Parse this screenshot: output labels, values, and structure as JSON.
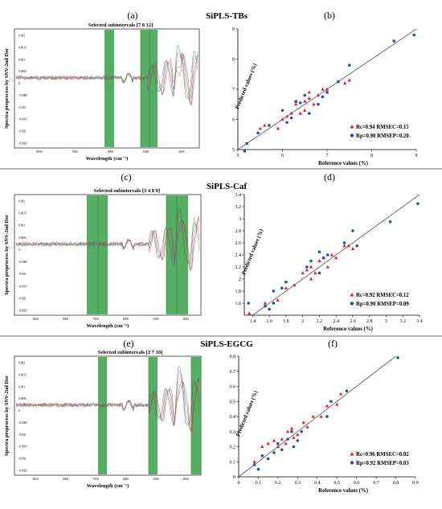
{
  "colors": {
    "band": "#43a552",
    "red": "#e8202a",
    "blue": "#1f4fb0",
    "orange": "#e89a2a",
    "purple": "#7a3aa0",
    "divider": "#8a8a8a",
    "line": "#555555"
  },
  "chart_data": [
    {
      "type": "line",
      "panel_label": "(a)",
      "title": "Selected subintervals [7 8 12]",
      "xlabel": "Wavelength (cm⁻¹)",
      "ylabel": "Spectra preprocess by SNV-2nd Der",
      "selected_intervals": [
        7,
        8,
        12
      ],
      "x_tick_labels": [
        "8000",
        "7000",
        "6000",
        "5000",
        "4000"
      ],
      "y_tick_labels": [
        "0.002",
        "0.0015",
        "0.001",
        "0.0005",
        "0",
        "-0.0005",
        "-0.001",
        "-0.0015",
        "-0.002",
        "-0.0025"
      ]
    },
    {
      "type": "scatter",
      "panel_label": "(b)",
      "group_title": "SiPLS-TBs",
      "xlabel": "Reference values (%)",
      "ylabel": "Predicted values (%)",
      "xlim": [
        5,
        9
      ],
      "ylim": [
        5,
        9
      ],
      "x_ticks": [
        5,
        6,
        7,
        8,
        9
      ],
      "y_ticks": [
        5,
        6,
        7,
        8,
        9
      ],
      "legend": [
        "Rc=0.94  RMSEC=0.15",
        "Rp=0.90  RMSEP=0.20"
      ],
      "series": [
        {
          "name": "Rc=0.94  RMSEC=0.15",
          "marker": "triangle",
          "color": "#e8202a",
          "points": [
            [
              5.5,
              5.7
            ],
            [
              5.6,
              5.8
            ],
            [
              5.9,
              5.7
            ],
            [
              6.0,
              6.0
            ],
            [
              6.1,
              6.1
            ],
            [
              6.2,
              6.2
            ],
            [
              6.3,
              6.5
            ],
            [
              6.4,
              6.2
            ],
            [
              6.5,
              6.3
            ],
            [
              6.5,
              6.6
            ],
            [
              6.6,
              6.7
            ],
            [
              6.7,
              6.5
            ],
            [
              6.8,
              6.8
            ],
            [
              6.9,
              7.0
            ],
            [
              7.0,
              7.0
            ],
            [
              7.4,
              7.2
            ],
            [
              7.5,
              7.3
            ],
            [
              6.3,
              6.6
            ],
            [
              6.6,
              6.9
            ],
            [
              7.0,
              6.9
            ]
          ]
        },
        {
          "name": "Rp=0.90  RMSEP=0.20",
          "marker": "circle",
          "color": "#1f4fb0",
          "points": [
            [
              5.15,
              4.95
            ],
            [
              5.2,
              5.2
            ],
            [
              5.45,
              5.55
            ],
            [
              5.7,
              5.8
            ],
            [
              6.0,
              6.3
            ],
            [
              6.1,
              5.9
            ],
            [
              6.2,
              6.05
            ],
            [
              6.3,
              6.6
            ],
            [
              6.5,
              6.8
            ],
            [
              6.6,
              6.2
            ],
            [
              6.8,
              6.5
            ],
            [
              7.0,
              6.9
            ],
            [
              7.25,
              7.25
            ],
            [
              7.5,
              7.8
            ],
            [
              8.5,
              8.6
            ],
            [
              8.95,
              8.8
            ],
            [
              6.4,
              6.55
            ],
            [
              6.9,
              6.75
            ]
          ]
        }
      ]
    },
    {
      "type": "line",
      "panel_label": "(c)",
      "title": "Selected subintervals [3 4 8 9]",
      "xlabel": "Wavelength (cm⁻¹)",
      "ylabel": "Spectra preprocess by SNV-2nd Der",
      "selected_intervals": [
        3,
        4,
        8,
        9
      ],
      "x_tick_labels": [
        "9000",
        "8000",
        "7000",
        "6000",
        "5000",
        "4000"
      ],
      "y_tick_labels": [
        "0.002",
        "0.0015",
        "0.001",
        "0.0005",
        "0",
        "-0.0005",
        "-0.001",
        "-0.0015",
        "-0.002",
        "-0.0025"
      ]
    },
    {
      "type": "scatter",
      "panel_label": "(d)",
      "group_title": "SiPLS-Caf",
      "xlabel": "Reference values (%)",
      "ylabel": "Predicted values (%)",
      "xlim": [
        1.3,
        3.4
      ],
      "ylim": [
        1.4,
        3.4
      ],
      "x_ticks": [
        1.4,
        1.6,
        1.8,
        2,
        2.2,
        2.4,
        2.6,
        2.8,
        3,
        3.2,
        3.4
      ],
      "y_ticks": [
        1.6,
        1.8,
        2,
        2.2,
        2.4,
        2.6,
        2.8,
        3,
        3.2,
        3.4
      ],
      "legend": [
        "Rc=0.92  RMSEC=0.12",
        "Rp=0.90  RMSEP=0.09"
      ],
      "series": [
        {
          "name": "Rc=0.92  RMSEC=0.12",
          "marker": "triangle",
          "color": "#e8202a",
          "points": [
            [
              1.36,
              1.43
            ],
            [
              1.55,
              1.6
            ],
            [
              1.7,
              1.65
            ],
            [
              1.8,
              1.85
            ],
            [
              1.9,
              1.9
            ],
            [
              2.0,
              2.1
            ],
            [
              2.05,
              2.15
            ],
            [
              2.1,
              2.0
            ],
            [
              2.1,
              2.2
            ],
            [
              2.15,
              2.1
            ],
            [
              2.2,
              2.3
            ],
            [
              2.25,
              2.35
            ],
            [
              2.3,
              2.2
            ],
            [
              2.35,
              2.4
            ],
            [
              2.4,
              2.35
            ],
            [
              2.5,
              2.55
            ],
            [
              2.55,
              2.55
            ],
            [
              2.6,
              2.5
            ]
          ]
        },
        {
          "name": "Rp=0.90  RMSEP=0.09",
          "marker": "circle",
          "color": "#1f4fb0",
          "points": [
            [
              1.35,
              1.6
            ],
            [
              1.55,
              1.55
            ],
            [
              1.6,
              1.5
            ],
            [
              1.65,
              1.6
            ],
            [
              1.65,
              1.8
            ],
            [
              1.75,
              1.85
            ],
            [
              1.8,
              1.95
            ],
            [
              2.05,
              2.2
            ],
            [
              2.1,
              2.3
            ],
            [
              2.2,
              2.1
            ],
            [
              2.2,
              2.45
            ],
            [
              2.25,
              2.35
            ],
            [
              2.3,
              2.4
            ],
            [
              2.5,
              2.6
            ],
            [
              2.6,
              2.8
            ],
            [
              2.65,
              2.55
            ],
            [
              3.05,
              2.95
            ],
            [
              3.38,
              3.25
            ]
          ]
        }
      ]
    },
    {
      "type": "line",
      "panel_label": "(e)",
      "title": "Selected subintervals [2 7 10]",
      "xlabel": "Wavelength (cm⁻¹)",
      "ylabel": "Spectra preprocess by SNV-2nd Der",
      "selected_intervals": [
        2,
        7,
        10
      ],
      "x_tick_labels": [
        "9000",
        "8000",
        "7000",
        "6000",
        "5000",
        "4000"
      ],
      "y_tick_labels": [
        "0.002",
        "0.0015",
        "0.001",
        "0.0005",
        "0",
        "-0.0005",
        "-0.001",
        "-0.0015",
        "-0.002",
        "-0.0025"
      ]
    },
    {
      "type": "scatter",
      "panel_label": "(f)",
      "group_title": "SiPLS-EGCG",
      "xlabel": "Reference values (%)",
      "ylabel": "Predicted values (%)",
      "xlim": [
        0,
        0.9
      ],
      "ylim": [
        0,
        0.8
      ],
      "x_ticks": [
        0,
        0.1,
        0.2,
        0.3,
        0.4,
        0.5,
        0.6,
        0.7,
        0.8,
        0.9
      ],
      "y_ticks": [
        0,
        0.1,
        0.2,
        0.3,
        0.4,
        0.5,
        0.6,
        0.7,
        0.8
      ],
      "legend": [
        "Rc=0.96  RMSEC=0.02",
        "Rp=0.92  RMSEP=0.03"
      ],
      "series": [
        {
          "name": "Rc=0.96  RMSEC=0.02",
          "marker": "triangle",
          "color": "#e8202a",
          "points": [
            [
              0.08,
              0.1
            ],
            [
              0.12,
              0.2
            ],
            [
              0.15,
              0.22
            ],
            [
              0.18,
              0.24
            ],
            [
              0.2,
              0.2
            ],
            [
              0.22,
              0.25
            ],
            [
              0.25,
              0.3
            ],
            [
              0.28,
              0.26
            ],
            [
              0.3,
              0.28
            ],
            [
              0.33,
              0.36
            ],
            [
              0.35,
              0.33
            ],
            [
              0.38,
              0.4
            ],
            [
              0.42,
              0.4
            ],
            [
              0.45,
              0.47
            ],
            [
              0.5,
              0.48
            ],
            [
              0.52,
              0.55
            ],
            [
              0.27,
              0.32
            ],
            [
              0.24,
              0.22
            ]
          ]
        },
        {
          "name": "Rp=0.92  RMSEP=0.03",
          "marker": "circle",
          "color": "#1f4fb0",
          "points": [
            [
              0.08,
              0.08
            ],
            [
              0.1,
              0.05
            ],
            [
              0.12,
              0.14
            ],
            [
              0.15,
              0.12
            ],
            [
              0.18,
              0.16
            ],
            [
              0.2,
              0.22
            ],
            [
              0.22,
              0.18
            ],
            [
              0.25,
              0.25
            ],
            [
              0.27,
              0.3
            ],
            [
              0.3,
              0.24
            ],
            [
              0.32,
              0.3
            ],
            [
              0.45,
              0.4
            ],
            [
              0.47,
              0.5
            ],
            [
              0.55,
              0.57
            ],
            [
              0.81,
              0.79
            ],
            [
              0.28,
              0.2
            ]
          ]
        }
      ]
    }
  ]
}
